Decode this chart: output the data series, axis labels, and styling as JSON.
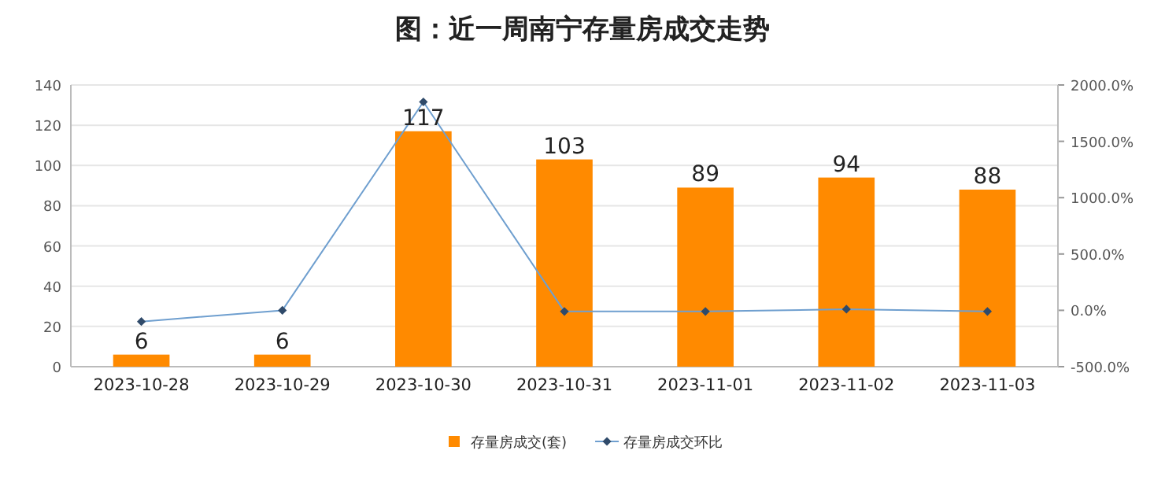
{
  "chart_data": {
    "type": "bar",
    "title": "图：近一周南宁存量房成交走势",
    "categories": [
      "2023-10-28",
      "2023-10-29",
      "2023-10-30",
      "2023-10-31",
      "2023-11-01",
      "2023-11-02",
      "2023-11-03"
    ],
    "series": [
      {
        "name": "存量房成交(套)",
        "color": "#ff8a00",
        "values": [
          6,
          6,
          117,
          103,
          89,
          94,
          88
        ],
        "data_labels": true
      },
      {
        "name": "存量房成交环比",
        "type": "line",
        "axis": "y2",
        "color": "#6f9fcf",
        "marker": "diamond",
        "values": [
          -100,
          0,
          1850,
          -10,
          -10,
          10,
          -10
        ]
      }
    ],
    "ylim": [
      0,
      140
    ],
    "yticks": [
      0,
      20,
      40,
      60,
      80,
      100,
      120,
      140
    ],
    "y2lim": [
      -500,
      2000
    ],
    "y2ticks": [
      {
        "value": -500,
        "label": "-500.0%"
      },
      {
        "value": 0,
        "label": "0.0%"
      },
      {
        "value": 500,
        "label": "500.0%"
      },
      {
        "value": 1000,
        "label": "1000.0%"
      },
      {
        "value": 1500,
        "label": "1500.0%"
      },
      {
        "value": 2000,
        "label": "2000.0%"
      }
    ],
    "grid": "y",
    "legend": "bottom"
  }
}
